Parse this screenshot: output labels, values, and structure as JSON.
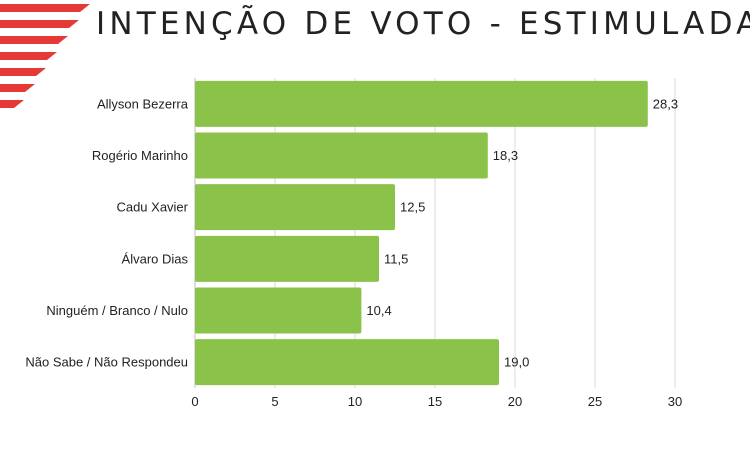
{
  "page": {
    "title": "INTENÇÃO DE VOTO - ESTIMULADA"
  },
  "colors": {
    "bar": "#8bc34a",
    "grid": "#d9d9d9",
    "stripe": "#e53935"
  },
  "chart_data": {
    "type": "bar",
    "orientation": "horizontal",
    "categories": [
      "Allyson Bezerra",
      "Rogério Marinho",
      "Cadu Xavier",
      "Álvaro Dias",
      "Ninguém / Branco / Nulo",
      "Não Sabe / Não Respondeu"
    ],
    "values": [
      28.3,
      18.3,
      12.5,
      11.5,
      10.4,
      19.0
    ],
    "value_labels": [
      "28,3",
      "18,3",
      "12,5",
      "11,5",
      "10,4",
      "19,0"
    ],
    "x_ticks": [
      "0",
      "5",
      "10",
      "15",
      "20",
      "25",
      "30"
    ],
    "xlim": [
      0,
      30
    ],
    "grid": true
  }
}
